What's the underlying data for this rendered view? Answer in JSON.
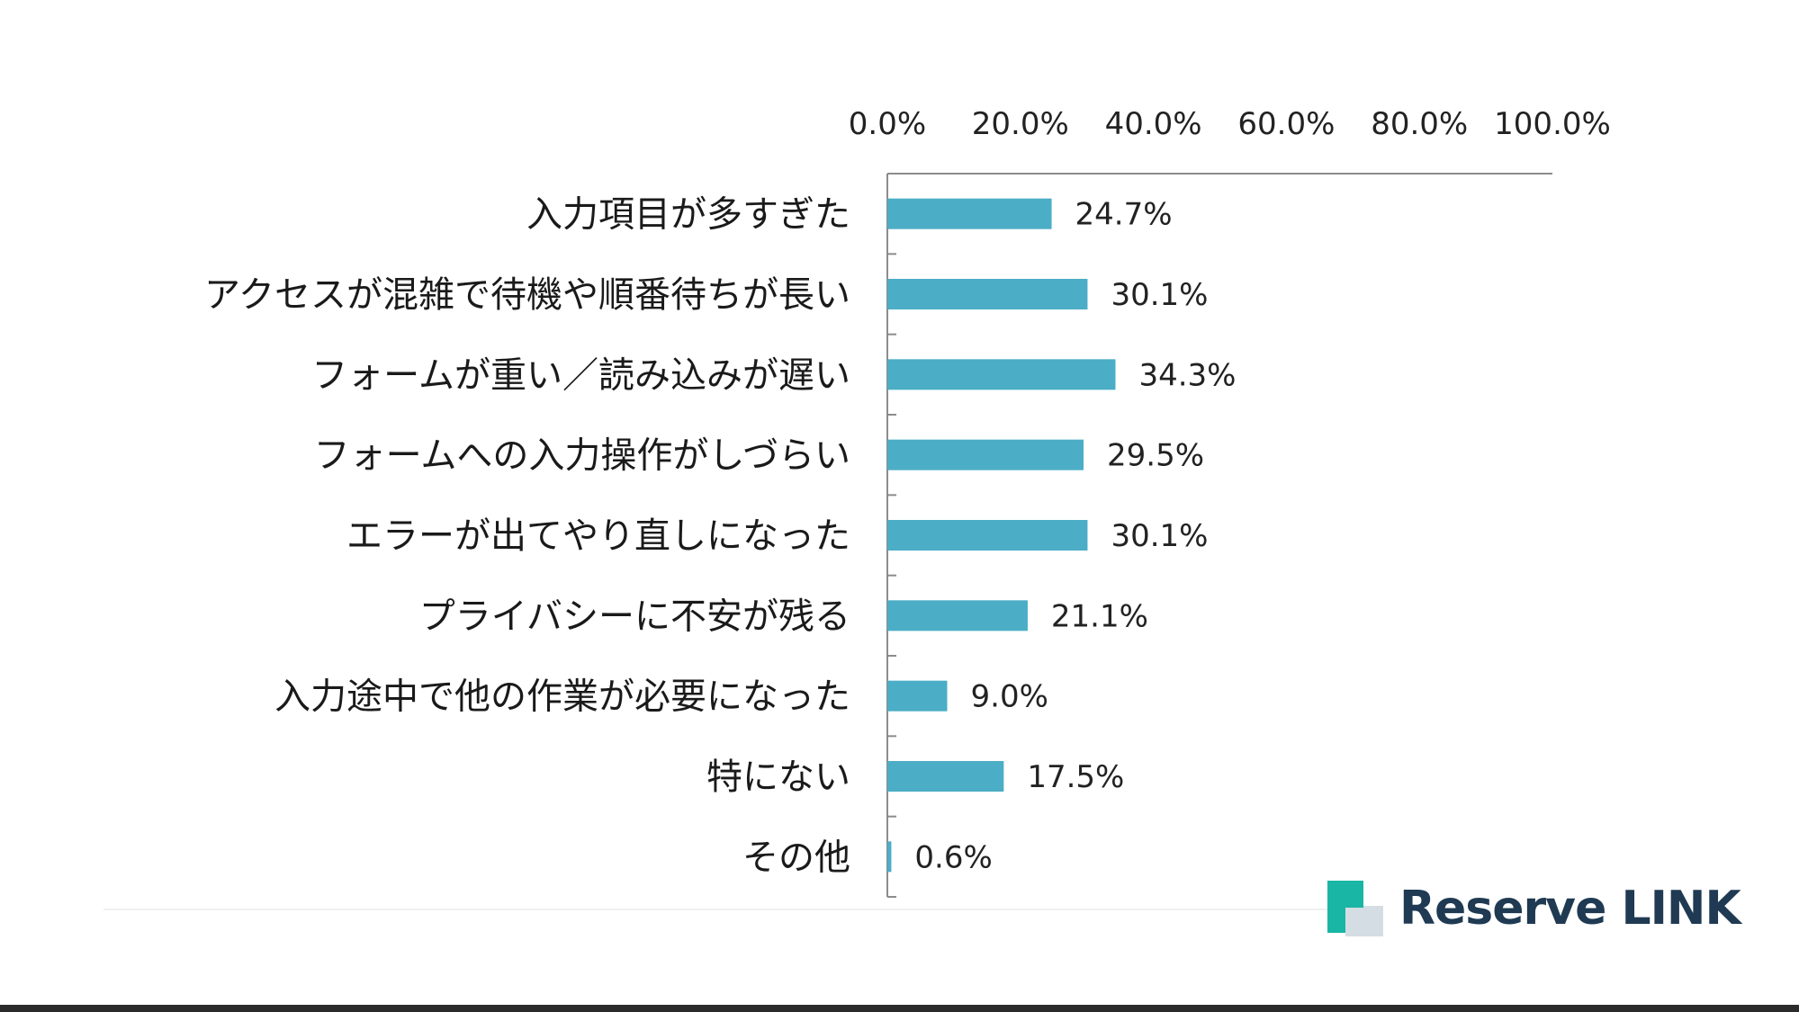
{
  "chart_data": {
    "type": "bar",
    "orientation": "horizontal",
    "categories": [
      "入力項目が多すぎた",
      "アクセスが混雑で待機や順番待ちが長い",
      "フォームが重い／読み込みが遅い",
      "フォームへの入力操作がしづらい",
      "エラーが出てやり直しになった",
      "プライバシーに不安が残る",
      "入力途中で他の作業が必要になった",
      "特にない",
      "その他"
    ],
    "values": [
      24.7,
      30.1,
      34.3,
      29.5,
      30.1,
      21.1,
      9.0,
      17.5,
      0.6
    ],
    "value_labels": [
      "24.7%",
      "30.1%",
      "34.3%",
      "29.5%",
      "30.1%",
      "21.1%",
      "9.0%",
      "17.5%",
      "0.6%"
    ],
    "xlim": [
      0,
      100
    ],
    "x_ticks": [
      "0.0%",
      "20.0%",
      "40.0%",
      "60.0%",
      "80.0%",
      "100.0%"
    ],
    "x_axis_position": "top",
    "grid": false,
    "bar_color": "#4badc6"
  },
  "brand": {
    "name": "Reserve LINK",
    "logo_icon": "reserve-link-logo-icon",
    "colors": {
      "logo_main": "#19b6a5",
      "logo_fold": "#d5dde4",
      "text": "#1f3a52"
    }
  }
}
